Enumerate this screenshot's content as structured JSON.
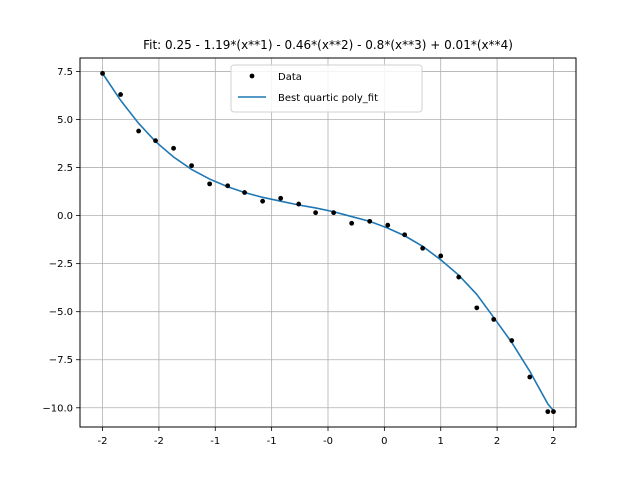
{
  "chart_data": {
    "type": "scatter",
    "title": "Fit: 0.25 - 1.19*(x**1) - 0.46*(x**2) - 0.8*(x**3) + 0.01*(x**4)",
    "xlabel": "",
    "ylabel": "",
    "xlim": [
      -2.2,
      2.2
    ],
    "ylim": [
      -11.0,
      8.2
    ],
    "grid": true,
    "legend": "upper-center",
    "x_ticks": [
      {
        "value": -2.0,
        "label": "-2"
      },
      {
        "value": -1.5,
        "label": "-2"
      },
      {
        "value": -1.0,
        "label": "-1"
      },
      {
        "value": -0.5,
        "label": "-1"
      },
      {
        "value": 0.0,
        "label": "-0"
      },
      {
        "value": 0.5,
        "label": "0"
      },
      {
        "value": 1.0,
        "label": "1"
      },
      {
        "value": 1.5,
        "label": "2"
      },
      {
        "value": 2.0,
        "label": "2"
      }
    ],
    "y_ticks": [
      {
        "value": 7.5,
        "label": "7.5"
      },
      {
        "value": 5.0,
        "label": "5.0"
      },
      {
        "value": 2.5,
        "label": "2.5"
      },
      {
        "value": 0.0,
        "label": "0.0"
      },
      {
        "value": -2.5,
        "label": "−2.5"
      },
      {
        "value": -5.0,
        "label": "−5.0"
      },
      {
        "value": -7.5,
        "label": "−7.5"
      },
      {
        "value": -10.0,
        "label": "−10.0"
      }
    ],
    "series": [
      {
        "name": "Data",
        "kind": "scatter",
        "color": "#000000",
        "x": [
          -2.0,
          -1.84,
          -1.68,
          -1.53,
          -1.37,
          -1.21,
          -1.05,
          -0.89,
          -0.74,
          -0.58,
          -0.42,
          -0.26,
          -0.11,
          0.05,
          0.21,
          0.37,
          0.53,
          0.68,
          0.84,
          1.0,
          1.16,
          1.32,
          1.47,
          1.63,
          1.79,
          1.95,
          2.0
        ],
        "y": [
          7.4,
          6.3,
          4.4,
          3.9,
          3.5,
          2.6,
          1.65,
          1.55,
          1.2,
          0.75,
          0.9,
          0.6,
          0.15,
          0.15,
          -0.4,
          -0.3,
          -0.5,
          -1.0,
          -1.7,
          -2.1,
          -3.2,
          -4.8,
          -5.4,
          -6.5,
          -8.4,
          -10.2,
          -10.2
        ]
      },
      {
        "name": "Best quartic poly_fit",
        "kind": "line",
        "color": "#1f77b4",
        "x": [
          -2.0,
          -1.84,
          -1.68,
          -1.53,
          -1.37,
          -1.21,
          -1.05,
          -0.89,
          -0.74,
          -0.58,
          -0.42,
          -0.26,
          -0.11,
          0.05,
          0.21,
          0.37,
          0.53,
          0.68,
          0.84,
          1.0,
          1.16,
          1.32,
          1.47,
          1.63,
          1.79,
          1.95,
          2.0
        ],
        "y": [
          7.4,
          6.0,
          4.8,
          3.85,
          3.05,
          2.4,
          1.9,
          1.5,
          1.2,
          0.95,
          0.75,
          0.55,
          0.4,
          0.2,
          -0.05,
          -0.3,
          -0.65,
          -1.05,
          -1.6,
          -2.3,
          -3.1,
          -4.1,
          -5.3,
          -6.6,
          -8.1,
          -9.8,
          -10.15
        ]
      }
    ]
  }
}
